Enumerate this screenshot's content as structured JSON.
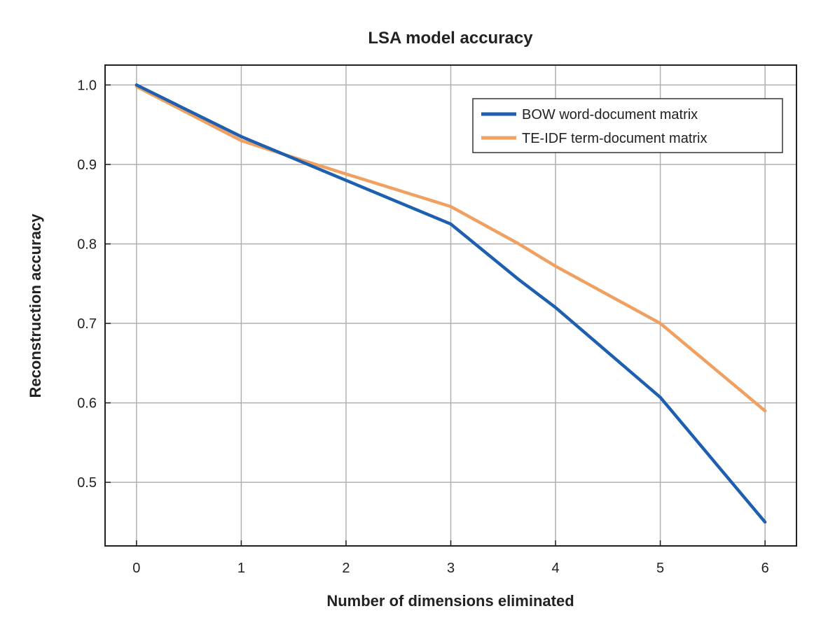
{
  "chart_data": {
    "type": "line",
    "title": "LSA model accuracy",
    "xlabel": "Number of dimensions eliminated",
    "ylabel": "Reconstruction accuracy",
    "x": [
      0,
      1,
      2,
      3,
      4,
      5,
      6
    ],
    "xlim": [
      -0.3,
      6.3
    ],
    "ylim": [
      0.42,
      1.025
    ],
    "x_ticks": [
      0,
      1,
      2,
      3,
      4,
      5,
      6
    ],
    "x_tick_labels": [
      "0",
      "1",
      "2",
      "3",
      "4",
      "5",
      "6"
    ],
    "y_ticks": [
      0.5,
      0.6,
      0.7,
      0.8,
      0.9,
      1.0
    ],
    "y_tick_labels": [
      "0.5",
      "0.6",
      "0.7",
      "0.8",
      "0.9",
      "1.0"
    ],
    "grid": true,
    "legend_position": "top-right",
    "series": [
      {
        "name": "BOW word-document matrix",
        "color": "#1f5fb0",
        "points": [
          [
            0,
            1.0
          ],
          [
            1,
            0.935
          ],
          [
            2,
            0.88
          ],
          [
            3,
            0.825
          ],
          [
            3.65,
            0.755
          ],
          [
            4,
            0.72
          ],
          [
            5,
            0.607
          ],
          [
            6,
            0.45
          ]
        ]
      },
      {
        "name": "TE-IDF term-document matrix",
        "color": "#f0a060",
        "points": [
          [
            0,
            0.998
          ],
          [
            1,
            0.93
          ],
          [
            1.35,
            0.915
          ],
          [
            2,
            0.888
          ],
          [
            3,
            0.847
          ],
          [
            3.65,
            0.8
          ],
          [
            4,
            0.772
          ],
          [
            5,
            0.7
          ],
          [
            6,
            0.59
          ]
        ]
      }
    ]
  }
}
